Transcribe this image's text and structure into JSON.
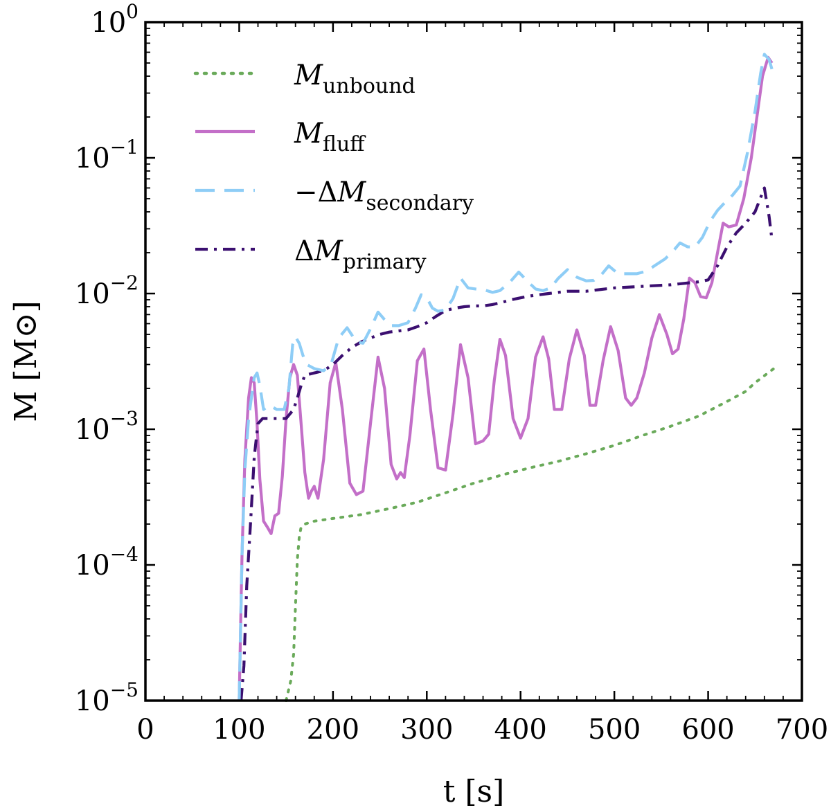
{
  "chart_data": {
    "type": "line",
    "title": "",
    "xlabel": "t [s]",
    "ylabel": "M [M⊙]",
    "xlim": [
      0,
      700
    ],
    "ylim": [
      1e-05,
      1
    ],
    "yscale": "log",
    "grid": false,
    "legend_position": "top-left",
    "x_ticks": [
      0,
      100,
      200,
      300,
      400,
      500,
      600,
      700
    ],
    "x_tick_labels": [
      "0",
      "100",
      "200",
      "300",
      "400",
      "500",
      "600",
      "700"
    ],
    "y_ticks": [
      1e-05,
      0.0001,
      0.001,
      0.01,
      0.1,
      1
    ],
    "y_tick_labels": [
      {
        "base": "10",
        "exp": "−5"
      },
      {
        "base": "10",
        "exp": "−4"
      },
      {
        "base": "10",
        "exp": "−3"
      },
      {
        "base": "10",
        "exp": "−2"
      },
      {
        "base": "10",
        "exp": "−1"
      },
      {
        "base": "10",
        "exp": "0"
      }
    ],
    "series": [
      {
        "name": "M_unbound",
        "label_main": "M",
        "label_prefix": "",
        "label_sub": "unbound",
        "color": "#6aaa5a",
        "style": "dotted",
        "x": [
          150,
          155,
          158,
          160,
          162,
          164,
          166,
          170,
          180,
          200,
          230,
          260,
          290,
          320,
          350,
          380,
          410,
          440,
          470,
          500,
          530,
          560,
          590,
          620,
          640,
          650,
          670
        ],
        "y": [
          1e-05,
          1.4e-05,
          2.2e-05,
          5e-05,
          0.00011,
          0.00016,
          0.00019,
          0.0002,
          0.00021,
          0.00022,
          0.000235,
          0.00026,
          0.00029,
          0.00034,
          0.0004,
          0.00046,
          0.00052,
          0.00058,
          0.00066,
          0.00076,
          0.0009,
          0.00105,
          0.00125,
          0.0016,
          0.0019,
          0.0022,
          0.0028
        ]
      },
      {
        "name": "M_fluff",
        "label_main": "M",
        "label_prefix": "",
        "label_sub": "fluff",
        "color": "#c36fc8",
        "style": "solid",
        "x": [
          100,
          103,
          106,
          110,
          113,
          116,
          119,
          122,
          126,
          130,
          134,
          138,
          142,
          146,
          150,
          154,
          158,
          162,
          166,
          170,
          174,
          177,
          180,
          184,
          190,
          197,
          203,
          210,
          218,
          225,
          232,
          240,
          248,
          255,
          262,
          268,
          272,
          276,
          282,
          290,
          297,
          304,
          312,
          320,
          328,
          336,
          344,
          352,
          360,
          366,
          372,
          378,
          384,
          392,
          400,
          408,
          416,
          424,
          430,
          436,
          444,
          452,
          460,
          468,
          474,
          480,
          488,
          496,
          504,
          512,
          518,
          524,
          532,
          540,
          548,
          556,
          562,
          568,
          574,
          580,
          586,
          592,
          598,
          604,
          610,
          616,
          622,
          630,
          638,
          646,
          652,
          658,
          664,
          668
        ],
        "y": [
          1e-05,
          0.00012,
          0.0006,
          0.0017,
          0.0024,
          0.0022,
          0.0011,
          0.00043,
          0.00021,
          0.00019,
          0.00017,
          0.00023,
          0.00024,
          0.00045,
          0.0012,
          0.0024,
          0.003,
          0.0025,
          0.0011,
          0.00048,
          0.00031,
          0.00035,
          0.00038,
          0.00031,
          0.0006,
          0.0022,
          0.0031,
          0.0014,
          0.0004,
          0.00033,
          0.00035,
          0.0011,
          0.0034,
          0.002,
          0.00055,
          0.00043,
          0.00048,
          0.00044,
          0.0009,
          0.0032,
          0.0039,
          0.0014,
          0.00052,
          0.0005,
          0.0013,
          0.0042,
          0.0024,
          0.00078,
          0.00082,
          0.00092,
          0.0023,
          0.0046,
          0.0035,
          0.0012,
          0.00086,
          0.0012,
          0.0034,
          0.0048,
          0.0033,
          0.0014,
          0.0014,
          0.0033,
          0.0054,
          0.0035,
          0.0015,
          0.0015,
          0.0032,
          0.0057,
          0.0038,
          0.0017,
          0.0015,
          0.0017,
          0.0026,
          0.0047,
          0.007,
          0.005,
          0.0036,
          0.0039,
          0.0065,
          0.013,
          0.012,
          0.0095,
          0.0093,
          0.012,
          0.02,
          0.033,
          0.031,
          0.032,
          0.05,
          0.1,
          0.2,
          0.4,
          0.55,
          0.5
        ]
      },
      {
        "name": "-ΔM_secondary",
        "label_main": "M",
        "label_prefix": "−Δ",
        "label_sub": "secondary",
        "color": "#8ecdf6",
        "style": "dashed",
        "x": [
          100,
          103,
          106,
          110,
          113,
          116,
          119,
          122,
          126,
          132,
          140,
          148,
          153,
          157,
          160,
          164,
          168,
          172,
          180,
          190,
          198,
          206,
          215,
          225,
          232,
          240,
          248,
          256,
          262,
          270,
          280,
          288,
          294,
          300,
          306,
          312,
          320,
          328,
          336,
          344,
          352,
          362,
          370,
          378,
          388,
          398,
          408,
          416,
          424,
          432,
          440,
          450,
          460,
          470,
          478,
          486,
          494,
          504,
          514,
          524,
          534,
          544,
          554,
          562,
          570,
          578,
          586,
          594,
          602,
          610,
          618,
          626,
          634,
          642,
          650,
          656,
          660,
          665,
          668
        ],
        "y": [
          1e-05,
          0.00012,
          0.0005,
          0.0012,
          0.0017,
          0.0024,
          0.0026,
          0.0021,
          0.0014,
          0.0015,
          0.0014,
          0.0014,
          0.002,
          0.0042,
          0.0048,
          0.0043,
          0.0035,
          0.003,
          0.0028,
          0.0027,
          0.003,
          0.0047,
          0.0056,
          0.0044,
          0.0043,
          0.0055,
          0.0073,
          0.0063,
          0.0058,
          0.0058,
          0.0061,
          0.0078,
          0.0098,
          0.0093,
          0.0078,
          0.0074,
          0.0076,
          0.0092,
          0.013,
          0.011,
          0.0108,
          0.0106,
          0.0102,
          0.0105,
          0.012,
          0.0144,
          0.0122,
          0.0108,
          0.0105,
          0.011,
          0.0129,
          0.015,
          0.0132,
          0.0124,
          0.0125,
          0.0137,
          0.016,
          0.014,
          0.014,
          0.014,
          0.0146,
          0.0162,
          0.018,
          0.0203,
          0.0236,
          0.0221,
          0.022,
          0.026,
          0.034,
          0.041,
          0.047,
          0.053,
          0.062,
          0.11,
          0.22,
          0.42,
          0.58,
          0.53,
          0.45
        ]
      },
      {
        "name": "ΔM_primary",
        "label_main": "M",
        "label_prefix": "Δ",
        "label_sub": "primary",
        "color": "#3b0f70",
        "style": "dashdot",
        "x": [
          102,
          105,
          108,
          112,
          116,
          120,
          125,
          132,
          140,
          150,
          158,
          162,
          166,
          170,
          180,
          190,
          200,
          210,
          220,
          230,
          240,
          250,
          260,
          270,
          280,
          290,
          300,
          310,
          320,
          330,
          340,
          350,
          360,
          370,
          380,
          390,
          400,
          410,
          420,
          430,
          440,
          450,
          460,
          470,
          480,
          490,
          500,
          510,
          520,
          530,
          540,
          550,
          560,
          570,
          580,
          590,
          600,
          610,
          620,
          630,
          640,
          650,
          660,
          665,
          668
        ],
        "y": [
          1e-05,
          1.8e-05,
          7e-05,
          0.0002,
          0.00062,
          0.0011,
          0.0012,
          0.0012,
          0.0012,
          0.0012,
          0.0014,
          0.0017,
          0.0021,
          0.0025,
          0.0026,
          0.0027,
          0.003,
          0.0035,
          0.004,
          0.0044,
          0.0047,
          0.005,
          0.0052,
          0.0053,
          0.0054,
          0.0057,
          0.0061,
          0.0068,
          0.0075,
          0.0078,
          0.008,
          0.0081,
          0.0081,
          0.0083,
          0.0086,
          0.009,
          0.0093,
          0.0096,
          0.0098,
          0.01,
          0.0102,
          0.0104,
          0.0104,
          0.0104,
          0.0106,
          0.0108,
          0.011,
          0.0111,
          0.0112,
          0.0113,
          0.0114,
          0.0115,
          0.0116,
          0.0118,
          0.012,
          0.0122,
          0.0126,
          0.016,
          0.022,
          0.028,
          0.033,
          0.04,
          0.06,
          0.037,
          0.025
        ]
      }
    ]
  }
}
